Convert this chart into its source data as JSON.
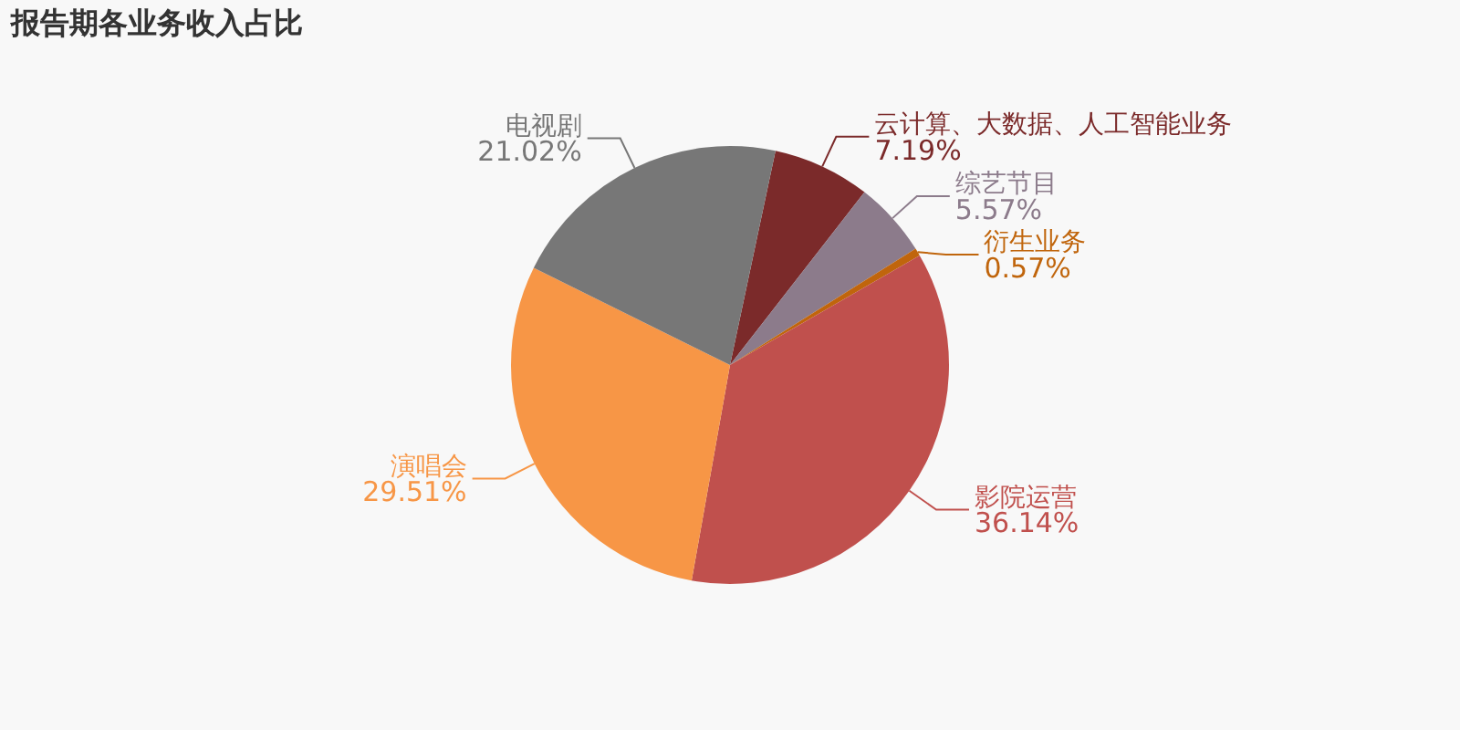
{
  "chart_data": {
    "type": "pie",
    "title": "报告期各业务收入占比",
    "categories": [
      "云计算、大数据、人工智能业务",
      "综艺节目",
      "衍生业务",
      "影院运营",
      "演唱会",
      "电视剧"
    ],
    "values": [
      7.19,
      5.57,
      0.57,
      36.14,
      29.51,
      21.02
    ],
    "colors": [
      "#7b2a2a",
      "#8c7b8b",
      "#c0650c",
      "#c0504d",
      "#f79646",
      "#777777"
    ],
    "value_labels": [
      "7.19%",
      "5.57%",
      "0.57%",
      "36.14%",
      "29.51%",
      "21.02%"
    ],
    "legend": false
  }
}
